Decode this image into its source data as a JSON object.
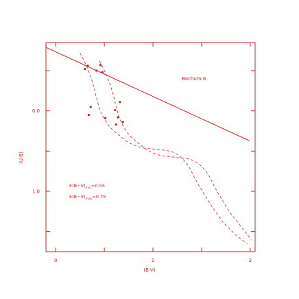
{
  "chart_data": {
    "type": "scatter",
    "title": "",
    "xlabel": "(B-V)",
    "ylabel": "(U-B)",
    "xlim": [
      -0.1,
      2.05
    ],
    "ylim": [
      1.75,
      -0.85
    ],
    "y_inverted": true,
    "grid": false,
    "color": "#d01c1c",
    "x_tick_labels": [
      "0",
      "1",
      "2"
    ],
    "x_tick_values": [
      0,
      1,
      2
    ],
    "y_tick_labels": [
      "0.0",
      "1.0"
    ],
    "y_tick_values": [
      0.0,
      1.0
    ],
    "annotation": "Bochum 6",
    "reddening_min": {
      "text": "E(B−V)",
      "sub": "min",
      "value": "=0.55"
    },
    "reddening_max": {
      "text": "E(B−V)",
      "sub": "max",
      "value": "=0.75"
    },
    "series": [
      {
        "kind": "points",
        "x": [
          0.3,
          0.33,
          0.46,
          0.42,
          0.48,
          0.36,
          0.34,
          0.51,
          0.66,
          0.61,
          0.64,
          0.69,
          0.62
        ],
        "y": [
          -0.52,
          -0.56,
          -0.57,
          -0.5,
          -0.48,
          -0.05,
          0.05,
          0.09,
          -0.11,
          -0.01,
          0.08,
          0.14,
          0.17
        ]
      },
      {
        "kind": "solid-line",
        "x": [
          -0.1,
          1.99
        ],
        "y": [
          -0.79,
          0.37
        ]
      },
      {
        "kind": "dashed-curve",
        "x": [
          0.25,
          0.32,
          0.38,
          0.42,
          0.47,
          0.55,
          0.65,
          0.76,
          0.9,
          1.05,
          1.22,
          1.35,
          1.45,
          1.58,
          1.72,
          1.86,
          1.97
        ],
        "y": [
          -0.72,
          -0.55,
          -0.35,
          -0.16,
          0.03,
          0.19,
          0.3,
          0.4,
          0.46,
          0.48,
          0.52,
          0.66,
          0.88,
          1.14,
          1.38,
          1.55,
          1.65
        ]
      },
      {
        "kind": "dashed-curve",
        "x": [
          0.45,
          0.52,
          0.58,
          0.62,
          0.67,
          0.75,
          0.85,
          0.96,
          1.1,
          1.25,
          1.42,
          1.55,
          1.65,
          1.78,
          1.92,
          2.01
        ],
        "y": [
          -0.62,
          -0.45,
          -0.25,
          -0.06,
          0.13,
          0.29,
          0.4,
          0.5,
          0.56,
          0.58,
          0.62,
          0.76,
          0.98,
          1.24,
          1.46,
          1.6
        ]
      }
    ]
  }
}
